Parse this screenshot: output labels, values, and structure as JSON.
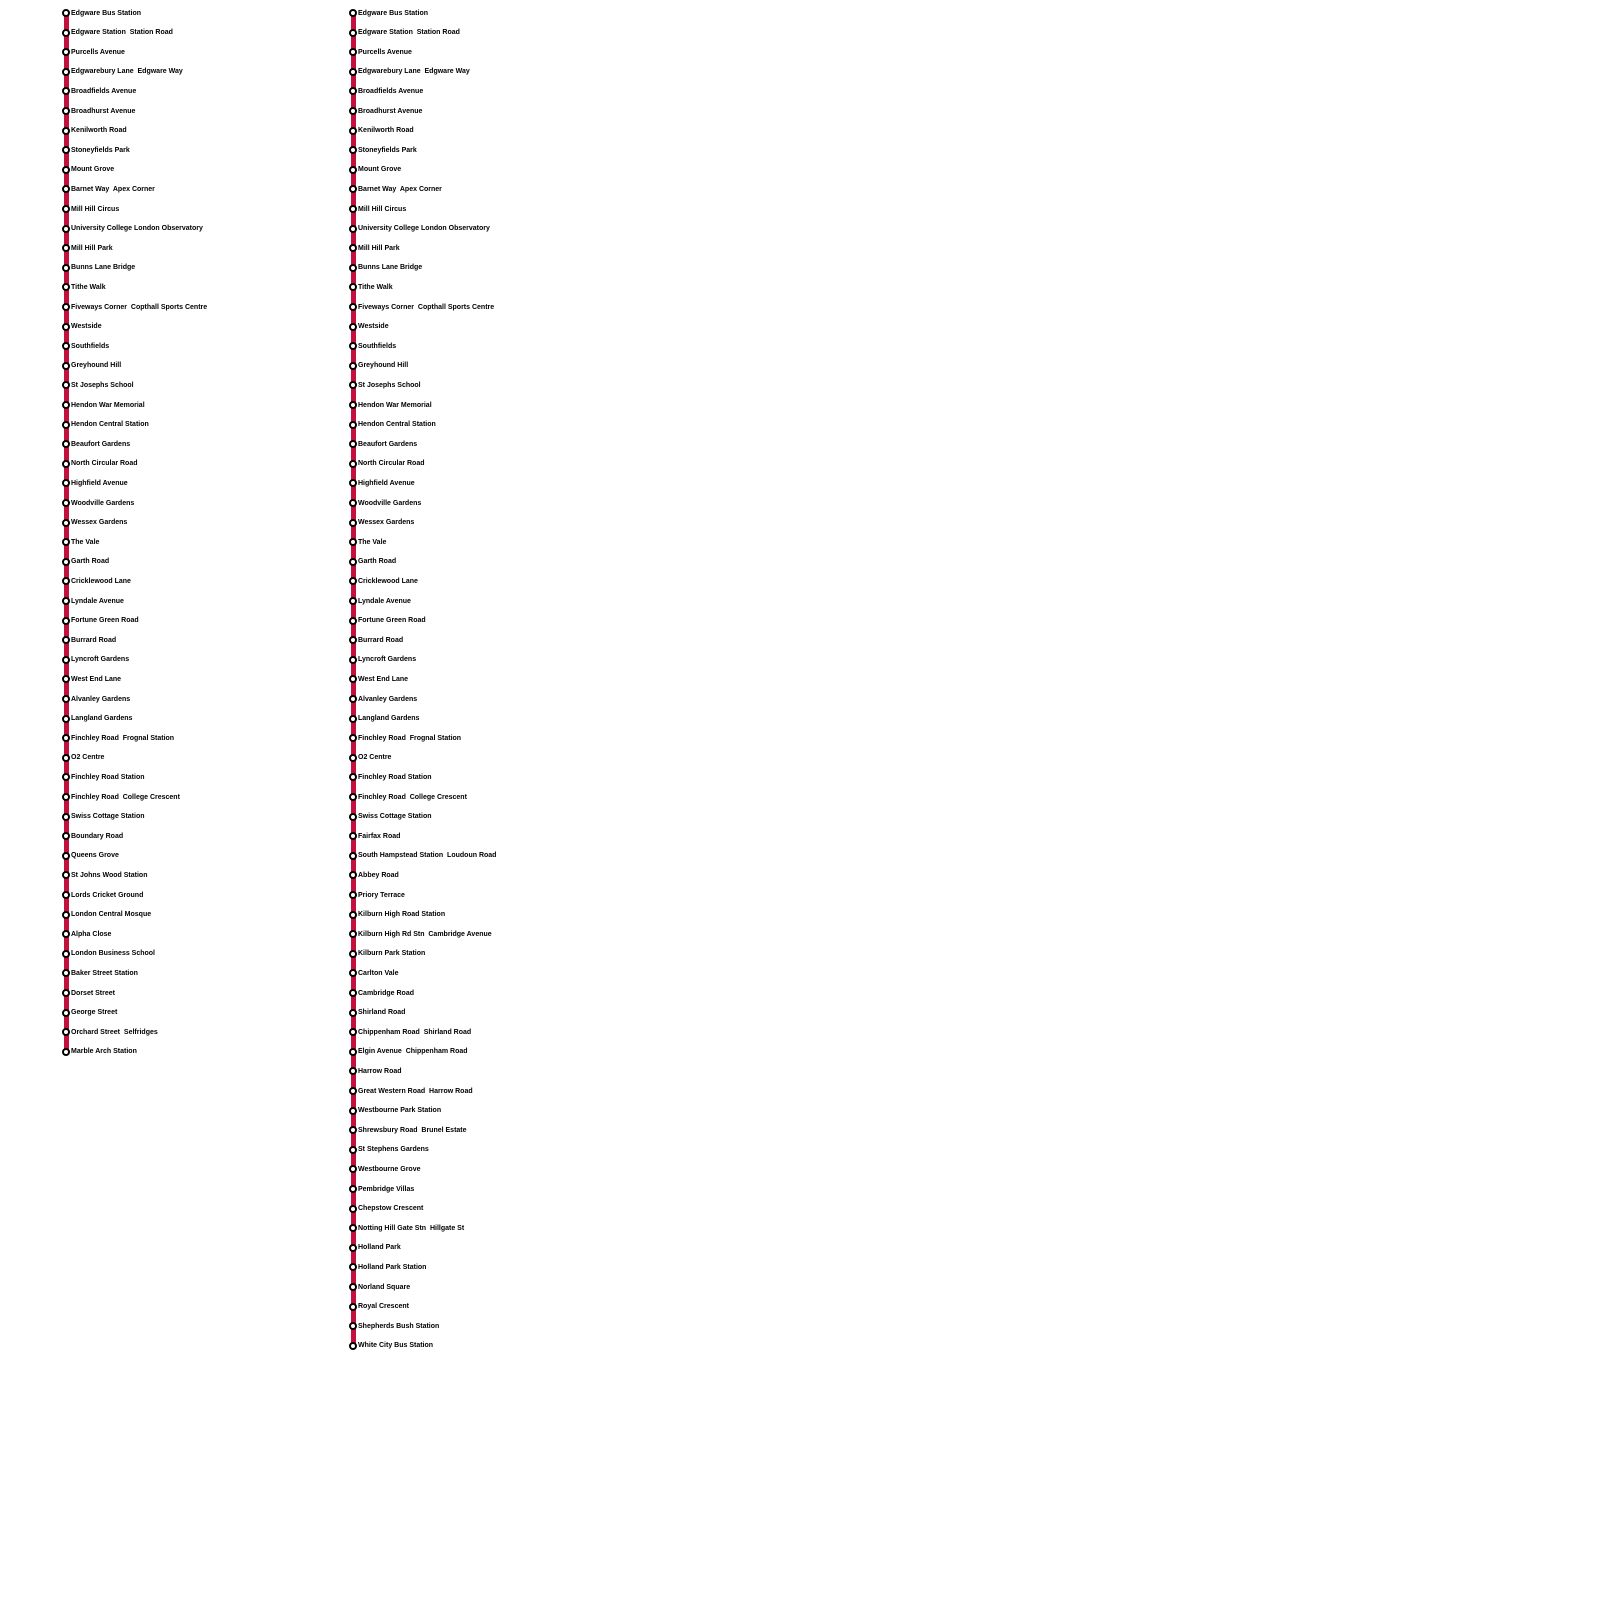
{
  "line_color": "#c4103c",
  "routes": [
    {
      "stops": [
        "Edgware Bus Station",
        "Edgware Station  Station Road",
        "Purcells Avenue",
        "Edgwarebury Lane  Edgware Way",
        "Broadfields Avenue",
        "Broadhurst Avenue",
        "Kenilworth Road",
        "Stoneyfields Park",
        "Mount Grove",
        "Barnet Way  Apex Corner",
        "Mill Hill Circus",
        "University College London Observatory",
        "Mill Hill Park",
        "Bunns Lane Bridge",
        "Tithe Walk",
        "Fiveways Corner  Copthall Sports Centre",
        "Westside",
        "Southfields",
        "Greyhound Hill",
        "St Josephs School",
        "Hendon War Memorial",
        "Hendon Central Station",
        "Beaufort Gardens",
        "North Circular Road",
        "Highfield Avenue",
        "Woodville Gardens",
        "Wessex Gardens",
        "The Vale",
        "Garth Road",
        "Cricklewood Lane",
        "Lyndale Avenue",
        "Fortune Green Road",
        "Burrard Road",
        "Lyncroft Gardens",
        "West End Lane",
        "Alvanley Gardens",
        "Langland Gardens",
        "Finchley Road  Frognal Station",
        "O2 Centre",
        "Finchley Road Station",
        "Finchley Road  College Crescent",
        "Swiss Cottage Station",
        "Boundary Road",
        "Queens Grove",
        "St Johns Wood Station",
        "Lords Cricket Ground",
        "London Central Mosque",
        "Alpha Close",
        "London Business School",
        "Baker Street Station",
        "Dorset Street",
        "George Street",
        "Orchard Street  Selfridges",
        "Marble Arch Station"
      ]
    },
    {
      "stops": [
        "Edgware Bus Station",
        "Edgware Station  Station Road",
        "Purcells Avenue",
        "Edgwarebury Lane  Edgware Way",
        "Broadfields Avenue",
        "Broadhurst Avenue",
        "Kenilworth Road",
        "Stoneyfields Park",
        "Mount Grove",
        "Barnet Way  Apex Corner",
        "Mill Hill Circus",
        "University College London Observatory",
        "Mill Hill Park",
        "Bunns Lane Bridge",
        "Tithe Walk",
        "Fiveways Corner  Copthall Sports Centre",
        "Westside",
        "Southfields",
        "Greyhound Hill",
        "St Josephs School",
        "Hendon War Memorial",
        "Hendon Central Station",
        "Beaufort Gardens",
        "North Circular Road",
        "Highfield Avenue",
        "Woodville Gardens",
        "Wessex Gardens",
        "The Vale",
        "Garth Road",
        "Cricklewood Lane",
        "Lyndale Avenue",
        "Fortune Green Road",
        "Burrard Road",
        "Lyncroft Gardens",
        "West End Lane",
        "Alvanley Gardens",
        "Langland Gardens",
        "Finchley Road  Frognal Station",
        "O2 Centre",
        "Finchley Road Station",
        "Finchley Road  College Crescent",
        "Swiss Cottage Station",
        "Fairfax Road",
        "South Hampstead Station  Loudoun Road",
        "Abbey Road",
        "Priory Terrace",
        "Kilburn High Road Station",
        "Kilburn High Rd Stn  Cambridge Avenue",
        "Kilburn Park Station",
        "Carlton Vale",
        "Cambridge Road",
        "Shirland Road",
        "Chippenham Road  Shirland Road",
        "Elgin Avenue  Chippenham Road",
        "Harrow Road",
        "Great Western Road  Harrow Road",
        "Westbourne Park Station",
        "Shrewsbury Road  Brunel Estate",
        "St Stephens Gardens",
        "Westbourne Grove",
        "Pembridge Villas",
        "Chepstow Crescent",
        "Notting Hill Gate Stn  Hillgate St",
        "Holland Park",
        "Holland Park Station",
        "Norland Square",
        "Royal Crescent",
        "Shepherds Bush Station",
        "White City Bus Station"
      ]
    }
  ]
}
